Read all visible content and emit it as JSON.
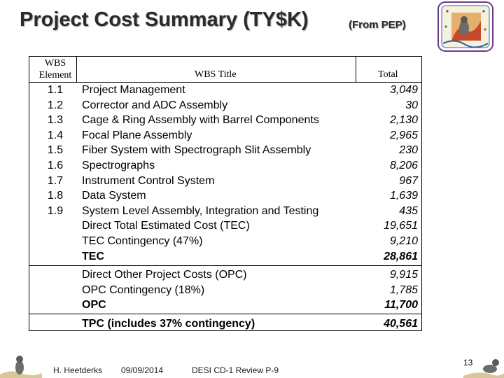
{
  "header": {
    "title": "Project Cost Summary (TY$K)",
    "subtitle": "(From PEP)",
    "logo_icon": "energy-logo-icon"
  },
  "table": {
    "col_wbs_line1": "WBS",
    "col_wbs_line2": "Element",
    "col_title": "WBS Title",
    "col_total": "Total",
    "rows": [
      {
        "wbs": "1.1",
        "title": "Project Management",
        "total": "3,049"
      },
      {
        "wbs": "1.2",
        "title": "Corrector and ADC Assembly",
        "total": "30"
      },
      {
        "wbs": "1.3",
        "title": "Cage & Ring Assembly with Barrel Components",
        "total": "2,130"
      },
      {
        "wbs": "1.4",
        "title": "Focal Plane Assembly",
        "total": "2,965"
      },
      {
        "wbs": "1.5",
        "title": "Fiber System with Spectrograph Slit Assembly",
        "total": "230"
      },
      {
        "wbs": "1.6",
        "title": "Spectrographs",
        "total": "8,206"
      },
      {
        "wbs": "1.7",
        "title": "Instrument Control System",
        "total": "967"
      },
      {
        "wbs": "1.8",
        "title": "Data System",
        "total": "1,639"
      },
      {
        "wbs": "1.9",
        "title": "System Level Assembly, Integration and Testing",
        "total": "435"
      },
      {
        "wbs": "",
        "title": "Direct Total Estimated Cost (TEC)",
        "total": "19,651"
      },
      {
        "wbs": "",
        "title": "TEC Contingency (47%)",
        "total": "9,210"
      },
      {
        "wbs": "",
        "title": "TEC",
        "total": "28,861"
      }
    ],
    "opc_rows": [
      {
        "title": "Direct Other Project Costs (OPC)",
        "total": "9,915"
      },
      {
        "title": "OPC Contingency (18%)",
        "total": "1,785"
      },
      {
        "title": "OPC",
        "total": "11,700"
      }
    ],
    "tpc": {
      "title": "TPC (includes 37% contingency)",
      "total": "40,561"
    }
  },
  "footer": {
    "author": "H. Heetderks",
    "date": "09/09/2014",
    "review": "DESI CD-1 Review  P-9",
    "page": "13"
  }
}
